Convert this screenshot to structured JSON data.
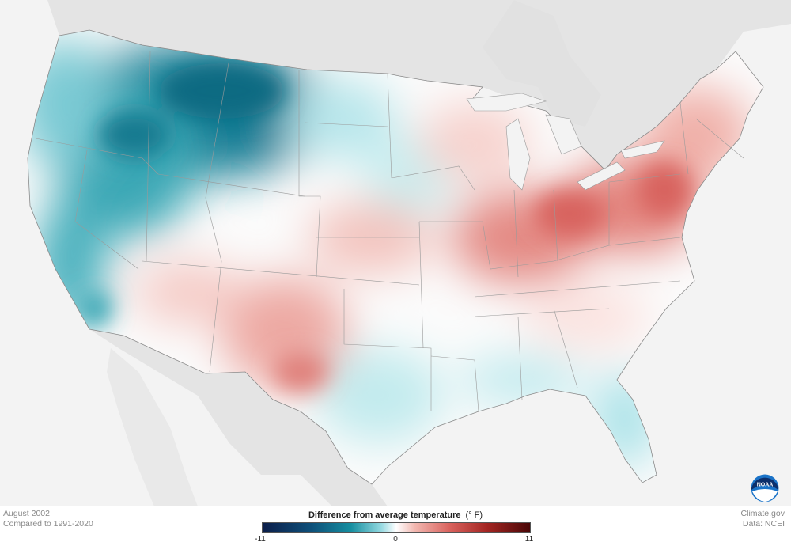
{
  "meta": {
    "period": "August 2002",
    "baseline": "Compared to 1991-2020",
    "source": "Climate.gov",
    "data_credit": "Data: NCEI"
  },
  "legend": {
    "title": "Difference from average temperature",
    "unit": "(° F)",
    "min_label": "-11",
    "mid_label": "0",
    "max_label": "11"
  },
  "logo": {
    "text": "NOAA",
    "icon": "noaa-logo-icon"
  },
  "colors": {
    "cold_strong": "#0e4f79",
    "cold": "#2aa3b3",
    "cold_light": "#a5e2e8",
    "neutral": "#ffffff",
    "warm_light": "#f6c6c0",
    "warm": "#df7670",
    "warm_strong": "#a32522",
    "land_outside": "#e4e4e4",
    "ocean": "#f3f3f3"
  }
}
